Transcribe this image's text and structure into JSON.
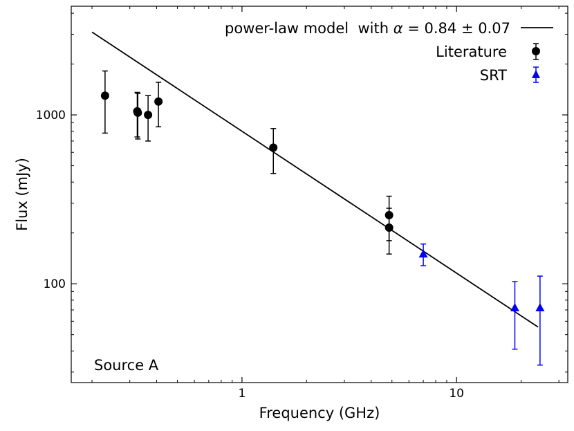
{
  "chart_data": {
    "type": "scatter",
    "xscale": "log",
    "yscale": "log",
    "xlabel": "Frequency (GHz)",
    "ylabel": "Flux (mJy)",
    "xlim": [
      0.16,
      33
    ],
    "ylim": [
      26,
      4400
    ],
    "xticks": [
      {
        "value": 1,
        "label": "1"
      },
      {
        "value": 10,
        "label": "10"
      }
    ],
    "yticks": [
      {
        "value": 100,
        "label": "100"
      },
      {
        "value": 1000,
        "label": "1000"
      }
    ],
    "annotation": "Source A",
    "model": {
      "name": "power-law model",
      "legend_label": "power-law model  with α = 0.84 ± 0.07",
      "alpha": 0.84,
      "alpha_err": 0.07,
      "amplitude_at_1GHz": 800,
      "x_range": [
        0.2,
        24
      ],
      "color": "#000000"
    },
    "series": [
      {
        "name": "Literature",
        "marker": "circle",
        "color": "#000000",
        "points": [
          {
            "x": 0.23,
            "y": 1300,
            "ylo": 780,
            "yhi": 1820
          },
          {
            "x": 0.325,
            "y": 1050,
            "ylo": 740,
            "yhi": 1360
          },
          {
            "x": 0.327,
            "y": 1030,
            "ylo": 720,
            "yhi": 1340
          },
          {
            "x": 0.365,
            "y": 1000,
            "ylo": 700,
            "yhi": 1300
          },
          {
            "x": 0.408,
            "y": 1200,
            "ylo": 850,
            "yhi": 1560
          },
          {
            "x": 1.4,
            "y": 640,
            "ylo": 450,
            "yhi": 830
          },
          {
            "x": 4.85,
            "y": 255,
            "ylo": 180,
            "yhi": 330
          },
          {
            "x": 4.85,
            "y": 215,
            "ylo": 150,
            "yhi": 280
          }
        ]
      },
      {
        "name": "SRT",
        "marker": "triangle",
        "color": "#0000ff",
        "points": [
          {
            "x": 7.0,
            "y": 150,
            "ylo": 128,
            "yhi": 172
          },
          {
            "x": 18.7,
            "y": 72,
            "ylo": 41,
            "yhi": 103
          },
          {
            "x": 24.5,
            "y": 72,
            "ylo": 33,
            "yhi": 111
          }
        ]
      }
    ]
  }
}
